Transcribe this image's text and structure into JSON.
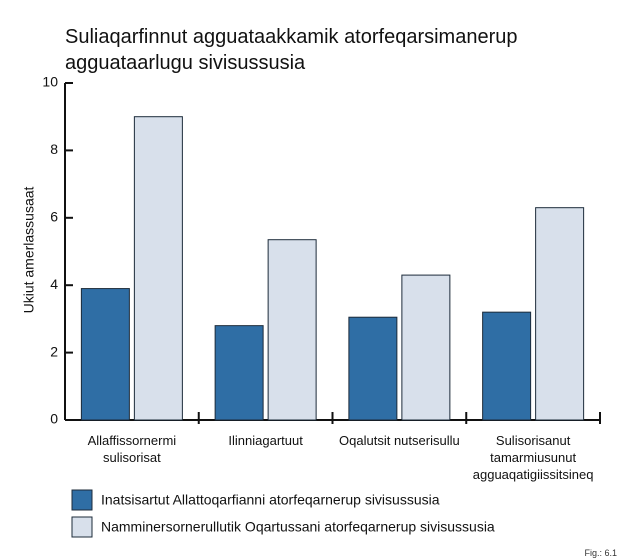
{
  "chart_data": {
    "type": "bar",
    "title": "Suliaqarfinnut agguataakkamik atorfeqarsimanerup agguataarlugu sivisussusia",
    "y_label": "Ukiut amerlassusaat",
    "categories": [
      "Allaffissornermi sulisorisat",
      "Ilinniagartuut",
      "Oqalutsit nutserisullu",
      "Sulisorisanut tamarmiusunut agguaqatigiissitsineq"
    ],
    "series": [
      {
        "name": "Inatsisartut Allattoqarfianni atorfeqarnerup sivisussusia",
        "color": "#2f6ea5",
        "values": [
          3.9,
          2.8,
          3.05,
          3.2
        ]
      },
      {
        "name": "Namminersornerullutik Oqartussani atorfeqarnerup sivisussusia",
        "color": "#d8e0eb",
        "values": [
          9,
          5.35,
          4.3,
          6.3
        ]
      }
    ],
    "ylim": [
      0,
      10
    ],
    "yticks": [
      0,
      2,
      4,
      6,
      8,
      10
    ],
    "note": "Fig.: 6.1"
  }
}
